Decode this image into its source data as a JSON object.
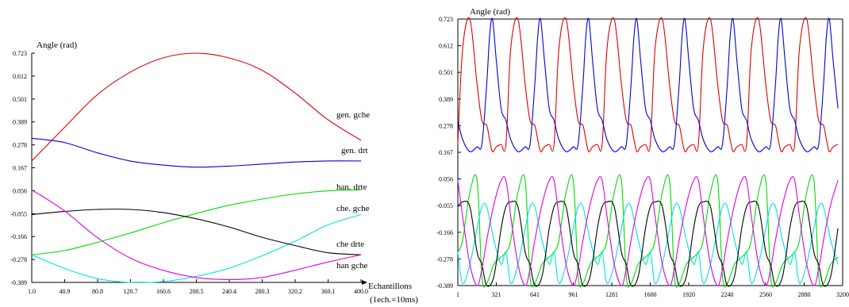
{
  "colors": {
    "gen_gche": "#e00000",
    "gen_drt": "#0000e0",
    "han_drte": "#00dd00",
    "che_gche": "#00e0e0",
    "che_drte": "#000000",
    "han_gche": "#e000e0"
  },
  "chart_data": [
    {
      "type": "line",
      "ylabel": "Angle (rad)",
      "xlabel": "Echantillons",
      "xlabel2": "(1ech.=10ms)",
      "xlim": [
        1,
        400
      ],
      "ylim": [
        -0.389,
        0.723
      ],
      "x_ticks": [
        "1.0",
        "40.9",
        "80.8",
        "120.7",
        "160.6",
        "200.5",
        "240.4",
        "280.3",
        "320.2",
        "360.1",
        "400.0"
      ],
      "y_ticks": [
        "0.723",
        "0.612",
        "0.501",
        "0.389",
        "0.278",
        "0.167",
        "0.056",
        "-0.055",
        "-0.166",
        "-0.278",
        "-0.389"
      ],
      "series": [
        {
          "key": "gen_gche",
          "name": "gen. gche",
          "x": [
            1,
            40,
            80,
            120,
            160,
            200,
            240,
            280,
            320,
            360,
            400
          ],
          "values": [
            0.2,
            0.36,
            0.52,
            0.63,
            0.7,
            0.723,
            0.7,
            0.64,
            0.53,
            0.4,
            0.3
          ]
        },
        {
          "key": "gen_drt",
          "name": "gen. drt",
          "x": [
            1,
            40,
            80,
            120,
            160,
            200,
            240,
            280,
            320,
            360,
            400
          ],
          "values": [
            0.31,
            0.29,
            0.24,
            0.2,
            0.18,
            0.17,
            0.175,
            0.185,
            0.195,
            0.2,
            0.2
          ]
        },
        {
          "key": "han_drte",
          "name": "han. drte",
          "x": [
            1,
            40,
            80,
            120,
            160,
            200,
            240,
            280,
            320,
            360,
            400
          ],
          "values": [
            -0.255,
            -0.235,
            -0.195,
            -0.15,
            -0.1,
            -0.055,
            -0.015,
            0.015,
            0.04,
            0.055,
            0.06
          ]
        },
        {
          "key": "che_gche",
          "name": "che. gche",
          "x": [
            1,
            40,
            80,
            120,
            160,
            200,
            240,
            280,
            320,
            360,
            400
          ],
          "values": [
            -0.255,
            -0.32,
            -0.37,
            -0.389,
            -0.385,
            -0.36,
            -0.32,
            -0.26,
            -0.19,
            -0.11,
            -0.06
          ]
        },
        {
          "key": "che_drte",
          "name": "che drte",
          "x": [
            1,
            40,
            80,
            120,
            160,
            200,
            240,
            280,
            320,
            360,
            400
          ],
          "values": [
            -0.06,
            -0.045,
            -0.035,
            -0.035,
            -0.05,
            -0.08,
            -0.12,
            -0.17,
            -0.21,
            -0.245,
            -0.255
          ]
        },
        {
          "key": "han_gche",
          "name": "han gche",
          "x": [
            1,
            40,
            80,
            120,
            160,
            200,
            240,
            280,
            320,
            360,
            400
          ],
          "values": [
            0.06,
            -0.04,
            -0.17,
            -0.27,
            -0.33,
            -0.365,
            -0.375,
            -0.365,
            -0.33,
            -0.29,
            -0.255
          ]
        }
      ]
    },
    {
      "type": "line",
      "ylabel": "Angle (rad)",
      "xlim": [
        1,
        3200
      ],
      "ylim": [
        -0.389,
        0.723
      ],
      "x_ticks": [
        "1",
        "321",
        "641",
        "961",
        "1281",
        "1600",
        "1920",
        "2240",
        "2560",
        "2880",
        "3200"
      ],
      "y_ticks": [
        "0.723",
        "0.612",
        "0.501",
        "0.389",
        "0.278",
        "0.167",
        "0.056",
        "-0.055",
        "-0.166",
        "-0.278",
        "-0.389"
      ],
      "period": 400,
      "series": [
        {
          "key": "gen_gche",
          "phase": [
            0,
            0.1,
            0.25,
            0.4,
            0.5,
            0.6,
            0.66,
            0.72,
            0.8,
            0.9,
            1.0
          ],
          "values": [
            0.2,
            0.6,
            0.723,
            0.45,
            0.3,
            0.28,
            0.22,
            0.17,
            0.19,
            0.2,
            0.2
          ]
        },
        {
          "key": "gen_drt",
          "phase": [
            0,
            0.1,
            0.25,
            0.4,
            0.5,
            0.6,
            0.66,
            0.72,
            0.8,
            0.9,
            1.0
          ],
          "values": [
            0.3,
            0.22,
            0.17,
            0.19,
            0.2,
            0.45,
            0.65,
            0.723,
            0.55,
            0.35,
            0.3
          ]
        },
        {
          "key": "han_drte",
          "phase": [
            0,
            0.1,
            0.25,
            0.4,
            0.5,
            0.6,
            0.75,
            0.9,
            1.0
          ],
          "values": [
            -0.25,
            -0.2,
            0.0,
            0.05,
            -0.35,
            -0.38,
            -0.3,
            -0.27,
            -0.25
          ]
        },
        {
          "key": "che_gche",
          "phase": [
            0,
            0.1,
            0.25,
            0.4,
            0.5,
            0.6,
            0.75,
            0.9,
            1.0
          ],
          "values": [
            -0.25,
            -0.38,
            -0.3,
            -0.15,
            -0.06,
            -0.06,
            -0.2,
            -0.3,
            -0.25
          ]
        },
        {
          "key": "che_drte",
          "phase": [
            0,
            0.1,
            0.25,
            0.4,
            0.5,
            0.6,
            0.75,
            0.9,
            1.0
          ],
          "values": [
            -0.06,
            -0.04,
            -0.06,
            -0.25,
            -0.3,
            -0.389,
            -0.35,
            -0.15,
            -0.06
          ]
        },
        {
          "key": "han_gche",
          "phase": [
            0,
            0.1,
            0.25,
            0.4,
            0.5,
            0.6,
            0.75,
            0.9,
            1.0
          ],
          "values": [
            0.05,
            -0.1,
            -0.3,
            -0.389,
            -0.32,
            -0.2,
            -0.05,
            0.05,
            0.05
          ]
        }
      ]
    }
  ]
}
